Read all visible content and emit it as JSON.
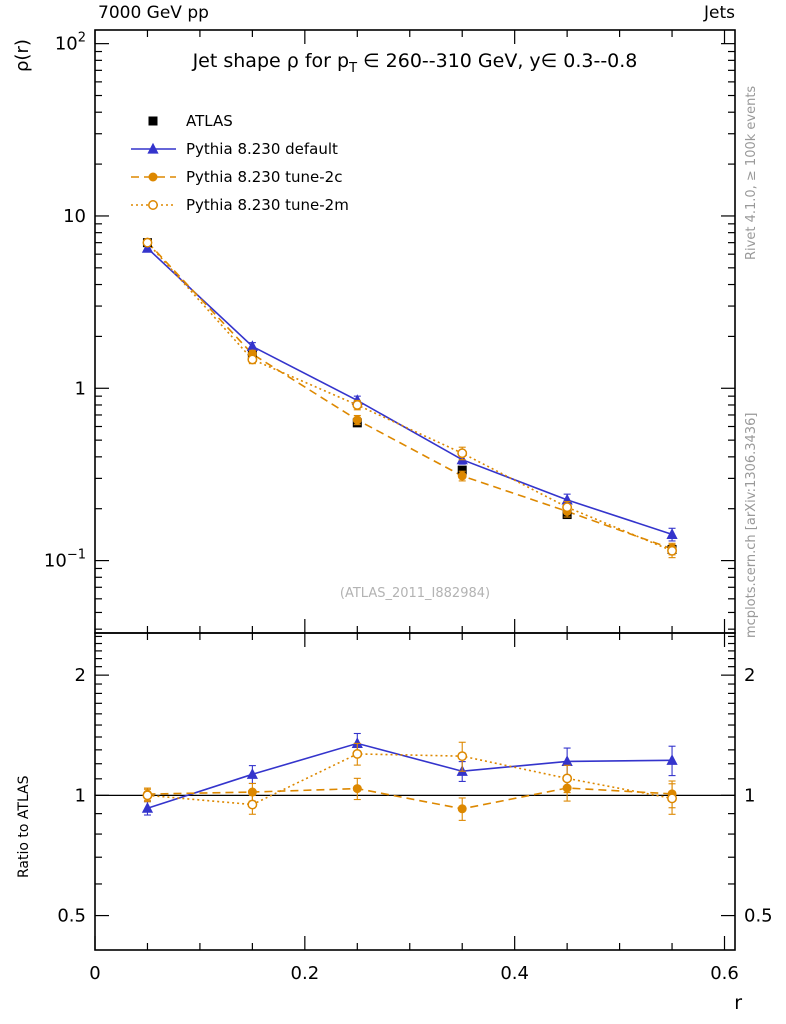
{
  "header": {
    "left": "7000 GeV pp",
    "right": "Jets"
  },
  "side_notes": {
    "top_right": "Rivet 4.1.0, ≥ 100k events",
    "bottom_right": "mcplots.cern.ch [arXiv:1306.3436]"
  },
  "watermark": "(ATLAS_2011_I882984)",
  "chart_data": {
    "type": "line",
    "title": "Jet shape ρ for p_T ∈ 260--310 GeV, y∈ 0.3--0.8",
    "title_parts": {
      "prefix": "Jet shape ρ for p",
      "sub": "T",
      "suffix": " ∈ 260--310 GeV, y∈ 0.3--0.8"
    },
    "xlabel": "r",
    "ylabel_main": "ρ(r)",
    "ylabel_ratio": "Ratio to ATLAS",
    "legend_position": "top-left",
    "grid": false,
    "xlim": [
      0,
      0.61
    ],
    "x_ticks": [
      {
        "v": 0,
        "label": "0"
      },
      {
        "v": 0.2,
        "label": "0.2"
      },
      {
        "v": 0.4,
        "label": "0.4"
      },
      {
        "v": 0.6,
        "label": "0.6"
      }
    ],
    "x_minor_step": 0.05,
    "main_panel": {
      "scale": "log",
      "ylim": [
        0.038,
        120
      ],
      "ticks": [
        {
          "v": 100,
          "label": "10^2"
        },
        {
          "v": 10,
          "label": "10"
        },
        {
          "v": 1,
          "label": "1"
        },
        {
          "v": 0.1,
          "label": "10^−1"
        }
      ]
    },
    "ratio_panel": {
      "scale": "log",
      "ylim": [
        0.41,
        2.55
      ],
      "ticks": [
        {
          "v": 2,
          "label": "2"
        },
        {
          "v": 1,
          "label": "1"
        },
        {
          "v": 0.5,
          "label": "0.5"
        }
      ],
      "reference": 1
    },
    "x": [
      0.05,
      0.15,
      0.25,
      0.35,
      0.45,
      0.55
    ],
    "series": [
      {
        "name": "atlas",
        "label": "ATLAS",
        "marker": "square",
        "color": "#000000",
        "line": "none",
        "is_reference": true,
        "y": [
          7.0,
          1.55,
          0.63,
          0.335,
          0.185,
          0.116
        ],
        "yerr": [
          0.12,
          0.03,
          0.012,
          0.007,
          0.004,
          0.003
        ]
      },
      {
        "name": "pythia-default",
        "label": "Pythia 8.230 default",
        "marker": "triangle",
        "color": "#3434cc",
        "line": "solid",
        "y": [
          6.5,
          1.75,
          0.85,
          0.385,
          0.225,
          0.142
        ],
        "yerr": [
          0.25,
          0.09,
          0.05,
          0.022,
          0.018,
          0.012
        ]
      },
      {
        "name": "pythia-tune-2c",
        "label": "Pythia 8.230 tune-2c",
        "marker": "circle",
        "color": "#dd8800",
        "line": "dashed",
        "y": [
          7.05,
          1.58,
          0.655,
          0.31,
          0.193,
          0.117
        ],
        "yerr": [
          0.25,
          0.08,
          0.04,
          0.02,
          0.014,
          0.009
        ]
      },
      {
        "name": "pythia-tune-2m",
        "label": "Pythia 8.230 tune-2m",
        "marker": "circle-open",
        "color": "#dd8800",
        "line": "dotted",
        "y": [
          7.0,
          1.47,
          0.8,
          0.42,
          0.204,
          0.114
        ],
        "yerr": [
          0.25,
          0.08,
          0.05,
          0.035,
          0.016,
          0.01
        ]
      }
    ]
  }
}
